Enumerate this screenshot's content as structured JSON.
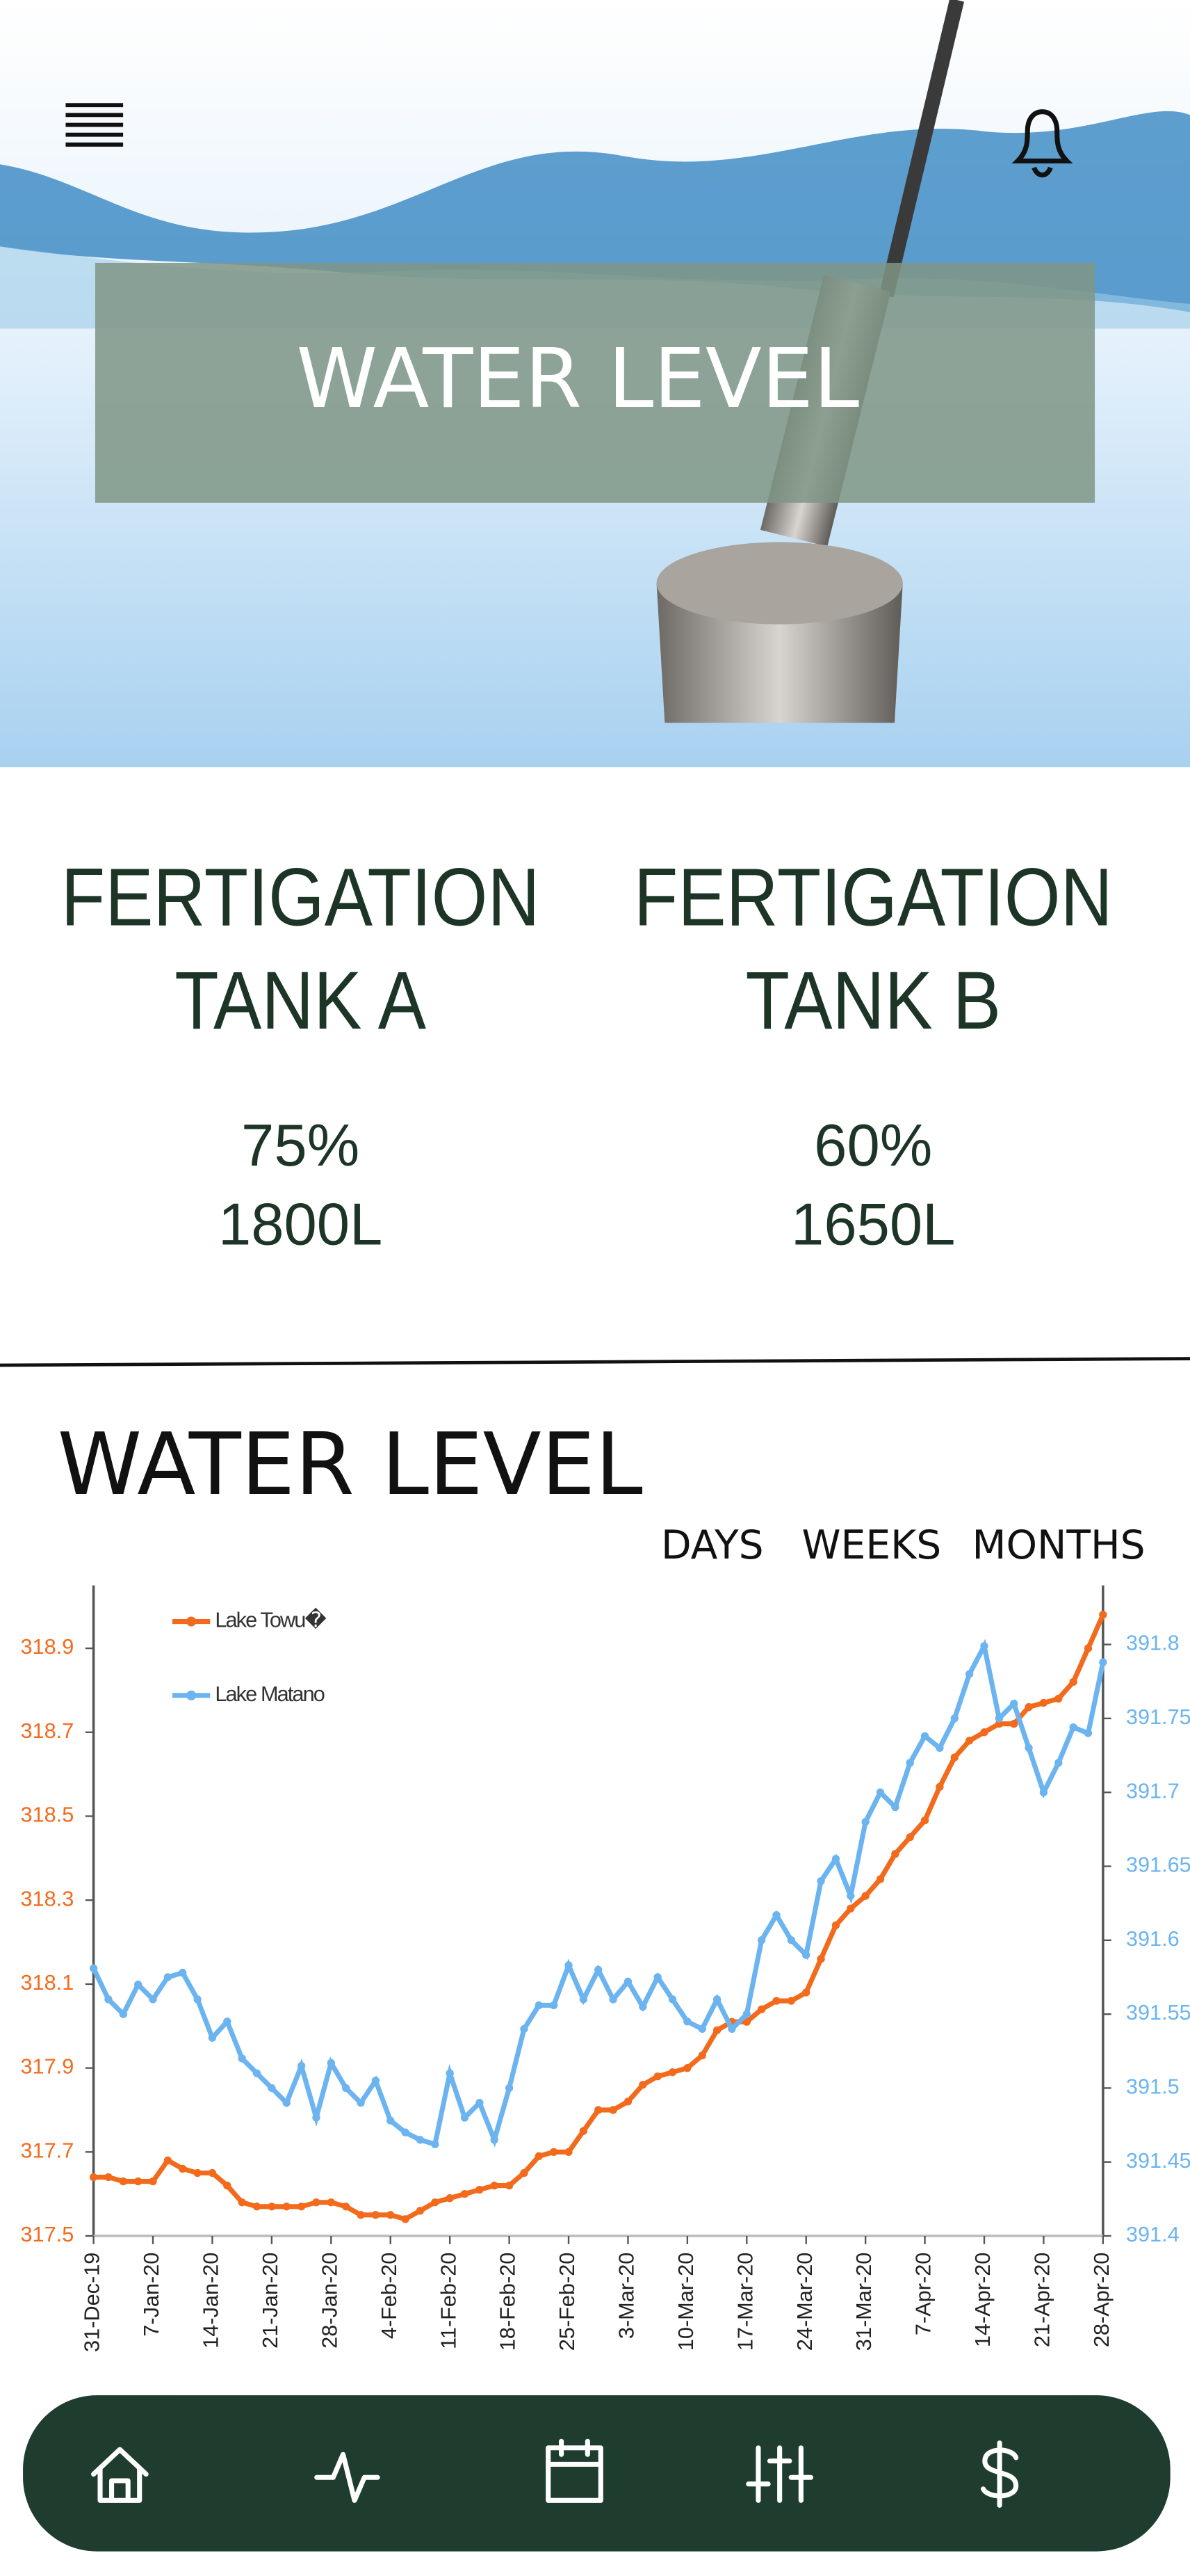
{
  "header": {
    "title": "WATER LEVEL"
  },
  "tanks": [
    {
      "name_lines": [
        "FERTIGATION",
        "TANK A"
      ],
      "percent": "75%",
      "volume": "1800L"
    },
    {
      "name_lines": [
        "FERTIGATION",
        "TANK B"
      ],
      "percent": "60%",
      "volume": "1650L"
    }
  ],
  "section": {
    "title": "WATER LEVEL",
    "tabs": [
      "DAYS",
      "WEEKS",
      "MONTHS"
    ]
  },
  "chart_data": {
    "type": "line",
    "categories": [
      "31-Dec-19",
      null,
      null,
      null,
      "7-Jan-20",
      null,
      null,
      null,
      "14-Jan-20",
      null,
      null,
      null,
      "21-Jan-20",
      null,
      null,
      null,
      "28-Jan-20",
      null,
      null,
      null,
      "4-Feb-20",
      null,
      null,
      null,
      "11-Feb-20",
      null,
      null,
      null,
      "18-Feb-20",
      null,
      null,
      null,
      "25-Feb-20",
      null,
      null,
      null,
      "3-Mar-20",
      null,
      null,
      null,
      "10-Mar-20",
      null,
      null,
      null,
      "17-Mar-20",
      null,
      null,
      null,
      "24-Mar-20",
      null,
      null,
      null,
      "31-Mar-20",
      null,
      null,
      null,
      "7-Apr-20",
      null,
      null,
      null,
      "14-Apr-20",
      null,
      null,
      null,
      "21-Apr-20",
      null,
      null,
      null,
      "28-Apr-20"
    ],
    "series": [
      {
        "name": "Lake Towu�",
        "color": "#f26b1d",
        "values": [
          317.64,
          317.64,
          317.63,
          317.63,
          317.63,
          317.68,
          317.66,
          317.65,
          317.65,
          317.62,
          317.58,
          317.57,
          317.57,
          317.57,
          317.57,
          317.58,
          317.58,
          317.57,
          317.55,
          317.55,
          317.55,
          317.54,
          317.56,
          317.58,
          317.59,
          317.6,
          317.61,
          317.62,
          317.62,
          317.65,
          317.69,
          317.7,
          317.7,
          317.75,
          317.8,
          317.8,
          317.82,
          317.86,
          317.88,
          317.89,
          317.9,
          317.93,
          317.99,
          318.01,
          318.01,
          318.04,
          318.06,
          318.06,
          318.08,
          318.16,
          318.24,
          318.28,
          318.31,
          318.35,
          318.41,
          318.45,
          318.49,
          318.57,
          318.64,
          318.68,
          318.7,
          318.72,
          318.72,
          318.76,
          318.77,
          318.78,
          318.82,
          318.9,
          318.98
        ]
      },
      {
        "name": "Lake Matano",
        "color": "#6cb4f0",
        "axis": "y2",
        "values": [
          391.581,
          391.56,
          391.55,
          391.57,
          391.56,
          391.575,
          391.578,
          391.56,
          391.534,
          391.545,
          391.52,
          391.51,
          391.5,
          391.49,
          391.515,
          391.48,
          391.517,
          391.5,
          391.49,
          391.505,
          391.478,
          391.47,
          391.465,
          391.462,
          391.51,
          391.48,
          391.49,
          391.465,
          391.5,
          391.54,
          391.556,
          391.556,
          391.583,
          391.56,
          391.58,
          391.56,
          391.572,
          391.555,
          391.575,
          391.56,
          391.545,
          391.54,
          391.56,
          391.54,
          391.55,
          391.6,
          391.617,
          391.6,
          391.59,
          391.64,
          391.655,
          391.63,
          391.68,
          391.7,
          391.69,
          391.72,
          391.738,
          391.73,
          391.75,
          391.78,
          391.799,
          391.75,
          391.76,
          391.73,
          391.7,
          391.72,
          391.744,
          391.74,
          391.788
        ]
      }
    ],
    "ylim": [
      317.5,
      319.05
    ],
    "yticks": [
      317.5,
      317.7,
      317.9,
      318.1,
      318.3,
      318.5,
      318.7,
      318.9
    ],
    "y2lim": [
      391.4,
      391.84
    ],
    "y2ticks": [
      391.4,
      391.45,
      391.5,
      391.55,
      391.6,
      391.65,
      391.7,
      391.75,
      391.8
    ],
    "grid": false,
    "legend": "top-left"
  }
}
